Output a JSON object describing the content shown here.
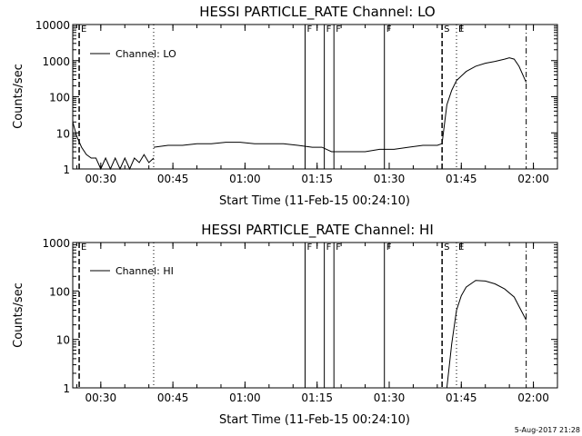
{
  "footer": {
    "date_stamp": "5-Aug-2017 21:28"
  },
  "chart_data": [
    {
      "type": "line",
      "title": "HESSI PARTICLE_RATE Channel: LO",
      "xlabel": "Start Time (11-Feb-15 00:24:10)",
      "ylabel": "Counts/sec",
      "scale_y": "log",
      "xlim": [
        "00:24:10",
        "02:05:00"
      ],
      "ylim": [
        1,
        10000
      ],
      "x_ticks": [
        "00:30",
        "00:45",
        "01:00",
        "01:15",
        "01:30",
        "01:45",
        "02:00"
      ],
      "y_ticks": [
        "1",
        "10",
        "100",
        "1000",
        "10000"
      ],
      "legend": {
        "position": "top-left",
        "entries": [
          "Channel: LO"
        ]
      },
      "markers": [
        {
          "time": "00:25:30",
          "label": "E",
          "style": "dashed"
        },
        {
          "time": "00:41:00",
          "label": "",
          "style": "dotted"
        },
        {
          "time": "01:12:30",
          "label": "F",
          "style": "solid"
        },
        {
          "time": "01:16:30",
          "label": "F",
          "style": "solid"
        },
        {
          "time": "01:18:30",
          "label": "F",
          "style": "solid"
        },
        {
          "time": "01:29:00",
          "label": "F",
          "style": "solid"
        },
        {
          "time": "01:41:00",
          "label": "S",
          "style": "dashed"
        },
        {
          "time": "01:44:00",
          "label": "E",
          "style": "dotted"
        },
        {
          "time": "01:58:30",
          "label": "",
          "style": "dashdot"
        }
      ],
      "series": [
        {
          "name": "Channel: LO",
          "segments": [
            {
              "x": [
                "00:24:10",
                "00:25:00",
                "00:26:00",
                "00:27:00",
                "00:28:00",
                "00:29:00",
                "00:30:00",
                "00:31:00",
                "00:32:00",
                "00:33:00",
                "00:34:00",
                "00:35:00",
                "00:36:00",
                "00:37:00",
                "00:38:00",
                "00:39:00",
                "00:40:00",
                "00:41:00"
              ],
              "y": [
                20,
                8,
                4,
                2.5,
                2,
                2,
                1,
                2,
                1,
                2,
                1,
                2,
                1,
                2,
                1.5,
                2.5,
                1.5,
                2
              ]
            },
            {
              "x": [
                "00:41:00",
                "00:44:00",
                "00:47:00",
                "00:50:00",
                "00:53:00",
                "00:56:00",
                "00:59:00",
                "01:02:00",
                "01:05:00",
                "01:08:00",
                "01:11:00",
                "01:14:00",
                "01:16:00",
                "01:18:00",
                "01:20:00",
                "01:22:00",
                "01:25:00",
                "01:28:00",
                "01:31:00",
                "01:34:00",
                "01:37:00",
                "01:40:00",
                "01:41:00"
              ],
              "y": [
                4,
                4.5,
                4.5,
                5,
                5,
                5.5,
                5.5,
                5,
                5,
                5,
                4.5,
                4,
                4,
                3,
                3,
                3,
                3,
                3.5,
                3.5,
                4,
                4.5,
                4.5,
                5
              ]
            },
            {
              "x": [
                "01:41:00",
                "01:42:00",
                "01:43:00",
                "01:44:00",
                "01:46:00",
                "01:48:00",
                "01:50:00",
                "01:52:00",
                "01:54:00",
                "01:55:00",
                "01:56:00",
                "01:57:00",
                "01:58:30"
              ],
              "y": [
                5,
                60,
                150,
                280,
                500,
                700,
                850,
                950,
                1100,
                1200,
                1100,
                700,
                250
              ]
            }
          ]
        }
      ]
    },
    {
      "type": "line",
      "title": "HESSI PARTICLE_RATE Channel: HI",
      "xlabel": "Start Time (11-Feb-15 00:24:10)",
      "ylabel": "Counts/sec",
      "scale_y": "log",
      "xlim": [
        "00:24:10",
        "02:05:00"
      ],
      "ylim": [
        1,
        1000
      ],
      "x_ticks": [
        "00:30",
        "00:45",
        "01:00",
        "01:15",
        "01:30",
        "01:45",
        "02:00"
      ],
      "y_ticks": [
        "1",
        "10",
        "100",
        "1000"
      ],
      "legend": {
        "position": "top-left",
        "entries": [
          "Channel: HI"
        ]
      },
      "markers": [
        {
          "time": "00:25:30",
          "label": "E",
          "style": "dashed"
        },
        {
          "time": "00:41:00",
          "label": "",
          "style": "dotted"
        },
        {
          "time": "01:12:30",
          "label": "F",
          "style": "solid"
        },
        {
          "time": "01:16:30",
          "label": "F",
          "style": "solid"
        },
        {
          "time": "01:18:30",
          "label": "F",
          "style": "solid"
        },
        {
          "time": "01:29:00",
          "label": "F",
          "style": "solid"
        },
        {
          "time": "01:41:00",
          "label": "S",
          "style": "dashed"
        },
        {
          "time": "01:44:00",
          "label": "E",
          "style": "dotted"
        },
        {
          "time": "01:58:30",
          "label": "",
          "style": "dashdot"
        }
      ],
      "series": [
        {
          "name": "Channel: HI",
          "segments": [
            {
              "x": [
                "01:42:00",
                "01:43:00",
                "01:44:00",
                "01:45:00",
                "01:46:00",
                "01:48:00",
                "01:50:00",
                "01:52:00",
                "01:54:00",
                "01:56:00",
                "01:58:30"
              ],
              "y": [
                1,
                8,
                40,
                80,
                120,
                165,
                160,
                140,
                110,
                75,
                25
              ]
            }
          ]
        }
      ]
    }
  ]
}
